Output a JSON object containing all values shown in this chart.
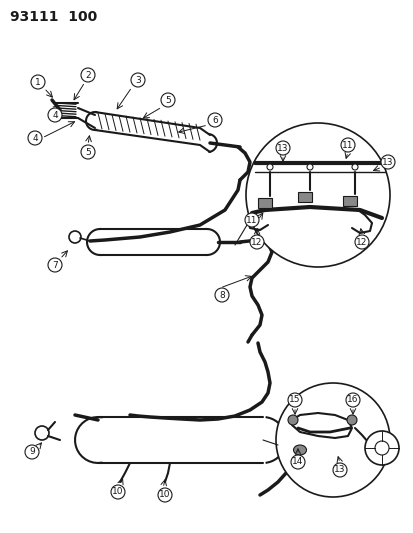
{
  "title": "93111  100",
  "bg_color": "#ffffff",
  "line_color": "#1a1a1a",
  "title_fontsize": 10,
  "fig_width": 4.14,
  "fig_height": 5.33,
  "dpi": 100
}
